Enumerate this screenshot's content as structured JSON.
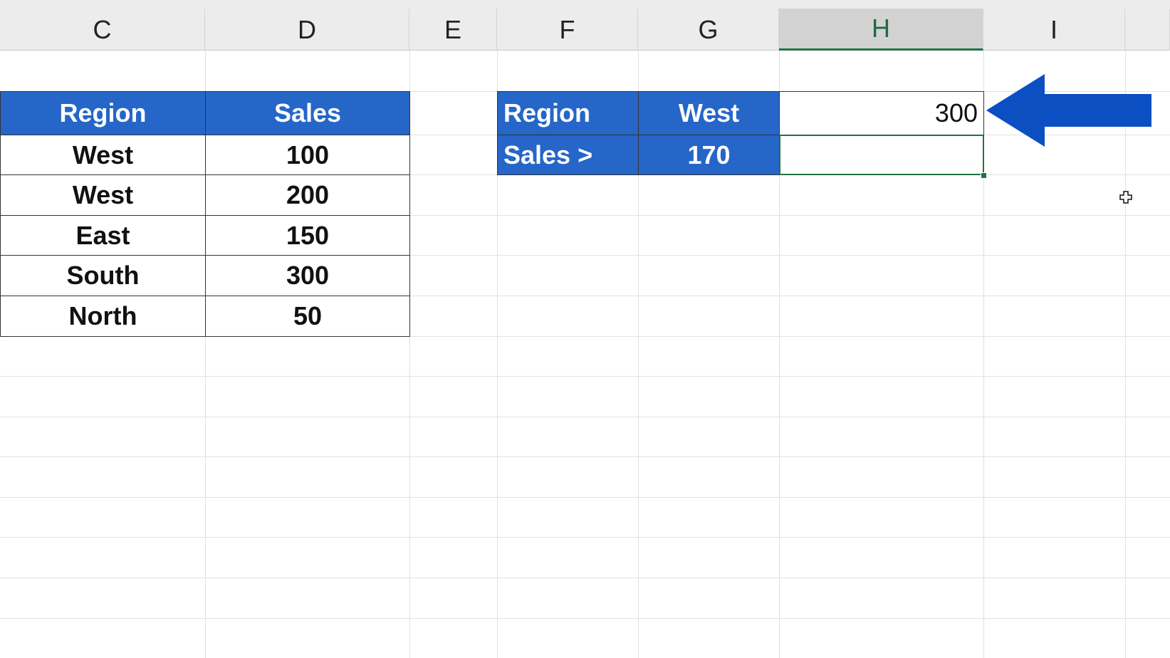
{
  "columns": [
    "C",
    "D",
    "E",
    "F",
    "G",
    "H",
    "I",
    ""
  ],
  "selected_column": "H",
  "source_table": {
    "headers": [
      "Region",
      "Sales"
    ],
    "rows": [
      [
        "West",
        "100"
      ],
      [
        "West",
        "200"
      ],
      [
        "East",
        "150"
      ],
      [
        "South",
        "300"
      ],
      [
        "North",
        "50"
      ]
    ]
  },
  "criteria": {
    "region_label": "Region",
    "region_value": "West",
    "result_value": "300",
    "sales_label": "Sales >",
    "sales_value": "170",
    "selected_cell_value": ""
  },
  "colors": {
    "header_fill": "#2566c8",
    "arrow": "#0b4fc2",
    "selection": "#217346"
  },
  "icons": {
    "arrow": "arrow-left-icon",
    "cursor": "crosshair-cursor-icon"
  }
}
